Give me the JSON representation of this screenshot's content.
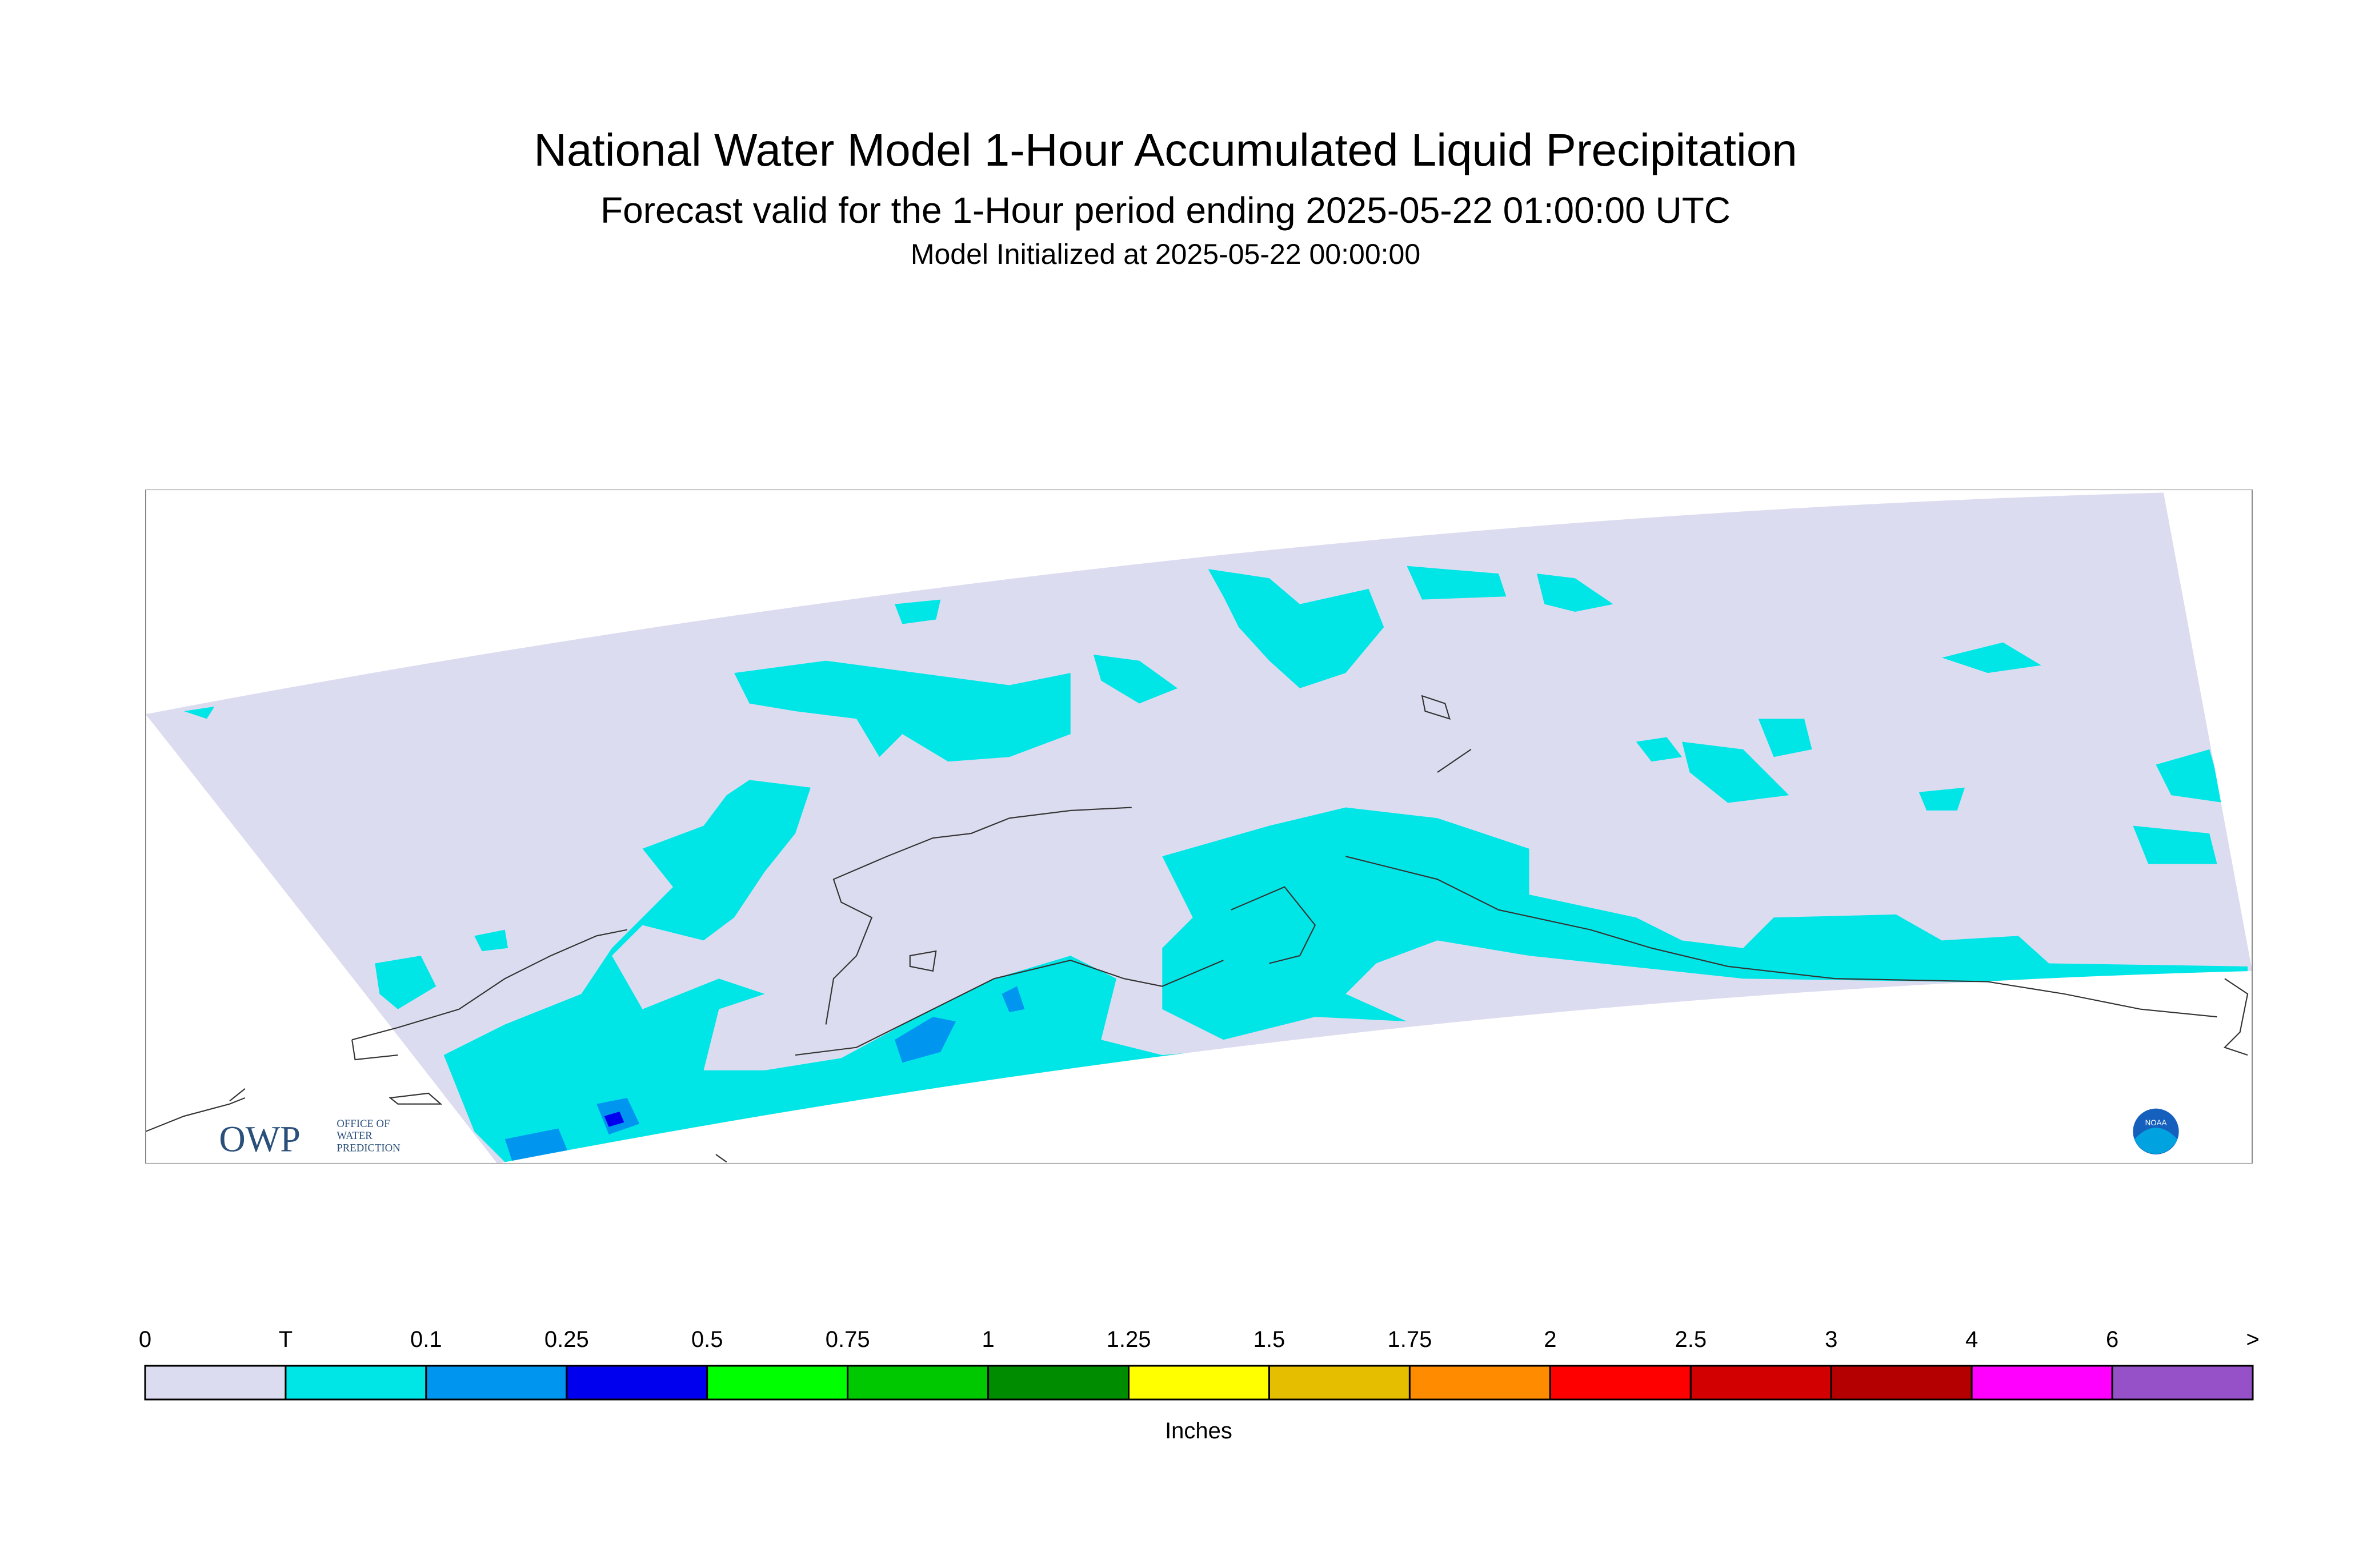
{
  "header": {
    "title": "National Water Model 1-Hour Accumulated Liquid Precipitation",
    "subtitle": "Forecast valid for the 1-Hour period ending 2025-05-22 01:00:00 UTC",
    "initialized": "Model Initialized at 2025-05-22 00:00:00"
  },
  "logos": {
    "owp": "OWP",
    "owp_name": [
      "OFFICE OF",
      "WATER",
      "PREDICTION"
    ],
    "noaa": "NOAA"
  },
  "legend": {
    "unit": "Inches",
    "labels": [
      "0",
      "T",
      "0.1",
      "0.25",
      "0.5",
      "0.75",
      "1",
      "1.25",
      "1.5",
      "1.75",
      "2",
      "2.5",
      "3",
      "4",
      "6",
      ">"
    ],
    "colors": [
      "#dcdcf0",
      "#00e6e6",
      "#0096f0",
      "#0000ef",
      "#00ff00",
      "#00c800",
      "#008c00",
      "#ffff00",
      "#e6be00",
      "#ff8c00",
      "#ff0000",
      "#d20000",
      "#b40000",
      "#ff00ff",
      "#9650c8"
    ]
  }
}
